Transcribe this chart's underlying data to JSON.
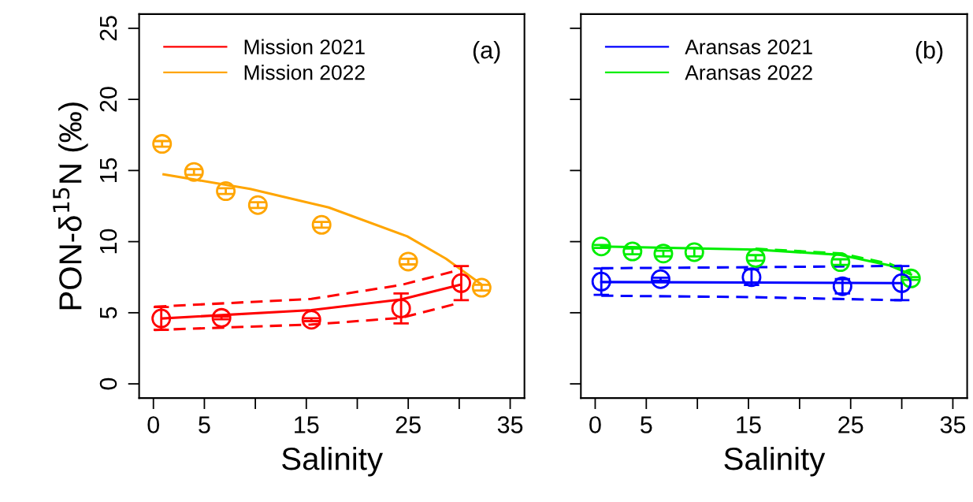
{
  "chart_data": [
    {
      "type": "scatter",
      "xlabel": "Salinity",
      "ylabel": "PON-δ$^{15}$N (‰)",
      "annotations": [
        "(a)"
      ],
      "xlim": [
        -1.4,
        36.4
      ],
      "ylim": [
        -1,
        26
      ],
      "xticks": [
        0,
        5,
        {
          "value": 10,
          "label": null
        },
        15,
        {
          "value": 20,
          "label": null
        },
        25,
        {
          "value": 30,
          "label": null
        },
        35
      ],
      "yticks": [
        0,
        5,
        10,
        15,
        20,
        25
      ],
      "legend": "top left",
      "grid": false,
      "series": [
        {
          "type": "line",
          "name": "Mission 2021",
          "color": "#ff0000",
          "line_style": "solid",
          "x": [
            0.9,
            15.5,
            24.3,
            30.0
          ],
          "values": [
            4.6,
            5.19,
            5.93,
            6.95
          ]
        },
        {
          "type": "line",
          "name": "Mission 2022",
          "color": "#ffa500",
          "line_style": "solid",
          "x": [
            1.0,
            9.5,
            17.2,
            24.9,
            28.7,
            32.1
          ],
          "values": [
            14.73,
            13.7,
            12.4,
            10.37,
            8.8,
            7.04
          ]
        },
        {
          "type": "line",
          "color": "#ff0000",
          "line_style": "dashed",
          "x": [
            0.1,
            15.5,
            24.3,
            29.8
          ],
          "values": [
            5.42,
            5.97,
            6.95,
            7.97
          ]
        },
        {
          "type": "line",
          "color": "#ff0000",
          "line_style": "dashed",
          "x": [
            0.1,
            15.5,
            24.3,
            29.8
          ],
          "values": [
            3.79,
            4.17,
            4.64,
            5.65
          ]
        },
        {
          "marker": "circle",
          "color": "#ff0000",
          "x": [
            0.77,
            6.68,
            15.5,
            24.3,
            30.2
          ],
          "values": [
            4.6,
            4.64,
            4.51,
            5.3,
            7.08
          ],
          "errors": [
            0.8,
            0.1,
            0.1,
            1.05,
            1.2
          ]
        },
        {
          "marker": "circle",
          "color": "#ffa500",
          "x": [
            0.85,
            3.98,
            7.1,
            10.25,
            16.5,
            25.0,
            32.2
          ],
          "values": [
            16.87,
            14.9,
            13.55,
            12.57,
            11.18,
            8.6,
            6.76
          ],
          "errors": [
            0.2,
            0.2,
            0.2,
            0.2,
            0.2,
            0.2,
            0.2
          ]
        }
      ]
    },
    {
      "type": "scatter",
      "xlabel": "Salinity",
      "annotations": [
        "(b)"
      ],
      "xlim": [
        -1.4,
        36.4
      ],
      "ylim": [
        -1,
        26
      ],
      "xticks": [
        0,
        5,
        {
          "value": 10,
          "label": null
        },
        15,
        {
          "value": 20,
          "label": null
        },
        25,
        {
          "value": 30,
          "label": null
        },
        35
      ],
      "yticks": [
        0,
        5,
        10,
        15,
        20,
        25
      ],
      "tick_labels": "x",
      "legend": "top left",
      "grid": false,
      "series": [
        {
          "type": "line",
          "name": "Aransas 2021",
          "color": "#0000ff",
          "line_style": "solid",
          "x": [
            0.6,
            15.3,
            30.0
          ],
          "values": [
            7.16,
            7.12,
            7.08
          ]
        },
        {
          "type": "line",
          "name": "Aransas 2022",
          "color": "#00ee00",
          "line_style": "solid",
          "x": [
            0.6,
            15.7,
            24.0,
            28.8,
            30.9
          ],
          "values": [
            9.66,
            9.44,
            9.07,
            8.33,
            7.69
          ]
        },
        {
          "type": "line",
          "color": "#0000ff",
          "line_style": "dashed",
          "x": [
            0.6,
            15.3,
            30.0
          ],
          "values": [
            8.13,
            8.2,
            8.3
          ]
        },
        {
          "type": "line",
          "color": "#0000ff",
          "line_style": "dashed",
          "x": [
            0.6,
            15.3,
            30.0
          ],
          "values": [
            6.2,
            6.1,
            5.88
          ]
        },
        {
          "type": "line",
          "color": "#00ee00",
          "line_style": "dashed",
          "x": [
            15.7,
            24.0,
            28.8,
            30.9
          ],
          "values": [
            9.5,
            9.17,
            8.45,
            7.8
          ]
        },
        {
          "marker": "circle",
          "color": "#00ee00",
          "x": [
            0.6,
            3.65,
            6.67,
            9.7,
            15.7,
            24.0,
            30.9
          ],
          "values": [
            9.66,
            9.31,
            9.16,
            9.26,
            8.85,
            8.56,
            7.41
          ],
          "errors": [
            0.1,
            0.2,
            0.2,
            0.3,
            0.2,
            0.2,
            0.1
          ]
        },
        {
          "marker": "circle",
          "color": "#0000ff",
          "x": [
            0.6,
            6.4,
            15.3,
            24.2,
            30.0
          ],
          "values": [
            7.19,
            7.36,
            7.5,
            6.86,
            7.08
          ],
          "errors": [
            0.93,
            0.1,
            0.55,
            0.5,
            1.2
          ]
        }
      ]
    }
  ]
}
